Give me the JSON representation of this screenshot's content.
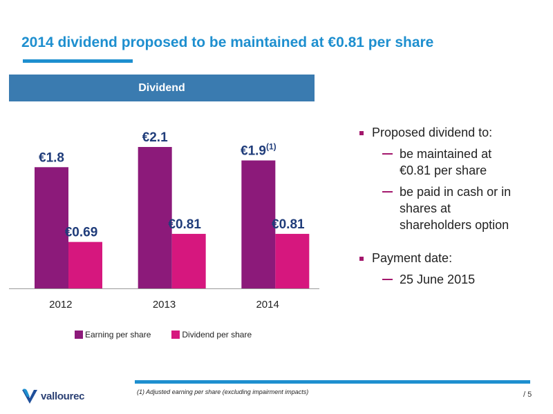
{
  "slide": {
    "title": "2014 dividend proposed to be maintained at €0.81 per share",
    "panel_header": "Dividend",
    "footnote": "(1)  Adjusted earning per share (excluding impairment impacts)",
    "page_number": "/ 5",
    "logo_text": "vallourec"
  },
  "colors": {
    "brand_blue": "#1e8fcf",
    "header_blue": "#3a7bb0",
    "earning": "#8c1a7a",
    "dividend": "#d6177e",
    "bullet_accent": "#a3176c",
    "label_navy": "#1f3c7a"
  },
  "chart_data": {
    "type": "bar",
    "categories": [
      "2012",
      "2013",
      "2014"
    ],
    "series": [
      {
        "name": "Earning per share",
        "values": [
          1.8,
          2.1,
          1.9
        ],
        "labels": [
          "€1.8",
          "€2.1",
          "€1.9"
        ],
        "label_notes": [
          "",
          "",
          "(1)"
        ]
      },
      {
        "name": "Dividend per share",
        "values": [
          0.69,
          0.81,
          0.81
        ],
        "labels": [
          "€0.69",
          "€0.81",
          "€0.81"
        ],
        "label_notes": [
          "",
          "",
          ""
        ]
      }
    ],
    "title": "",
    "xlabel": "",
    "ylabel": "",
    "ylim": [
      0,
      2.1
    ],
    "grid": false,
    "legend": "bottom"
  },
  "bullets": [
    {
      "text": "Proposed dividend to:",
      "subs": [
        [
          "be maintained at",
          "€0.81 per share"
        ],
        [
          "be paid in cash or in",
          "shares at",
          "shareholders option"
        ]
      ]
    },
    {
      "text": "Payment date:",
      "subs": [
        [
          "25 June 2015"
        ]
      ]
    }
  ]
}
